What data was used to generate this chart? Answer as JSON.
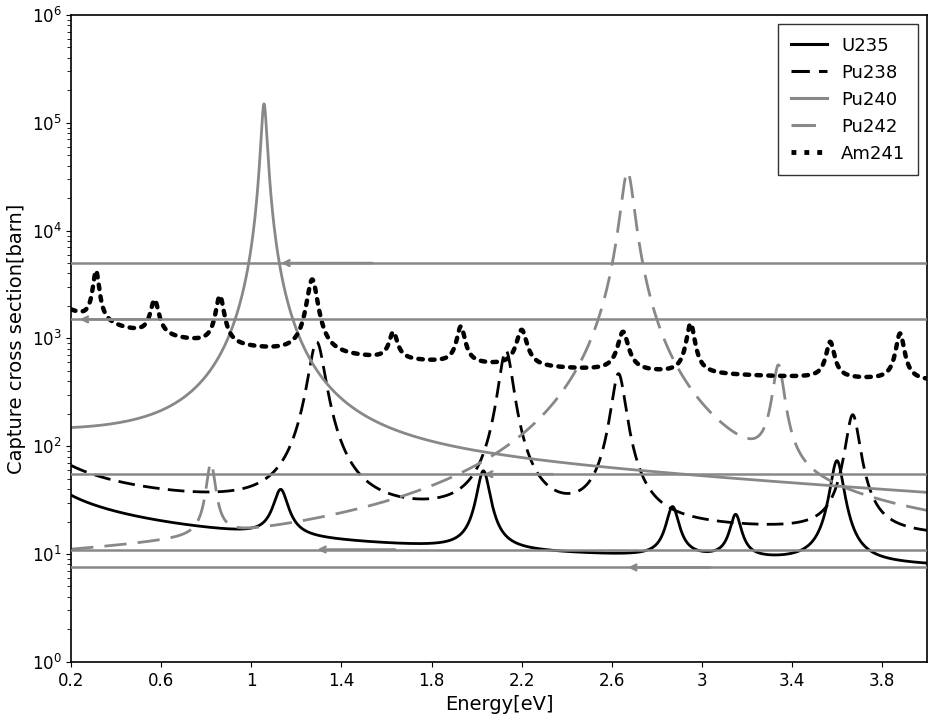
{
  "title": "",
  "xlabel": "Energy[eV]",
  "ylabel": "Capture cross section[barn]",
  "xlim": [
    0.2,
    4.0
  ],
  "ylim": [
    1,
    1000000.0
  ],
  "figsize": [
    9.34,
    7.21
  ],
  "dpi": 100,
  "legend_entries": [
    "U235",
    "Pu238",
    "Pu240",
    "Pu242",
    "Am241"
  ],
  "u235_color": "#000000",
  "pu238_color": "#000000",
  "pu240_color": "#888888",
  "pu242_color": "#888888",
  "am241_color": "#000000",
  "hline_color": "#888888",
  "hline_lw": 1.8,
  "hline_values": [
    5000,
    1500,
    55,
    11,
    7.5
  ],
  "arrow_positions": [
    {
      "x_tip": 1.12,
      "x_tail": 1.55,
      "y": 5000
    },
    {
      "x_tip": 0.225,
      "x_tail": 0.55,
      "y": 1500
    },
    {
      "x_tip": 2.02,
      "x_tail": 2.35,
      "y": 55
    },
    {
      "x_tip": 1.28,
      "x_tail": 1.65,
      "y": 11
    },
    {
      "x_tip": 2.66,
      "x_tail": 3.05,
      "y": 7.5
    }
  ]
}
